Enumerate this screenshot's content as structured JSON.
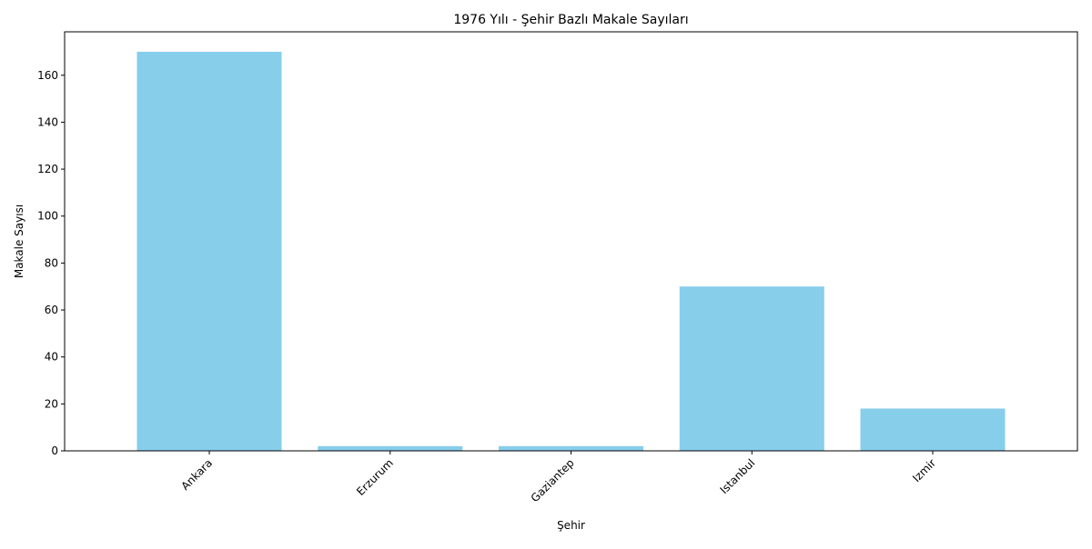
{
  "chart_data": {
    "type": "bar",
    "title": "1976 Yılı - Şehir Bazlı Makale Sayıları",
    "xlabel": "Şehir",
    "ylabel": "Makale Sayısı",
    "categories": [
      "Ankara",
      "Erzurum",
      "Gaziantep",
      "Istanbul",
      "Izmir"
    ],
    "values": [
      170,
      2,
      2,
      70,
      18
    ],
    "ylim": [
      0,
      178.5
    ],
    "yticks": [
      0,
      20,
      40,
      60,
      80,
      100,
      120,
      140,
      160
    ],
    "bar_color": "#87ceeb",
    "grid": false,
    "legend": "none"
  }
}
